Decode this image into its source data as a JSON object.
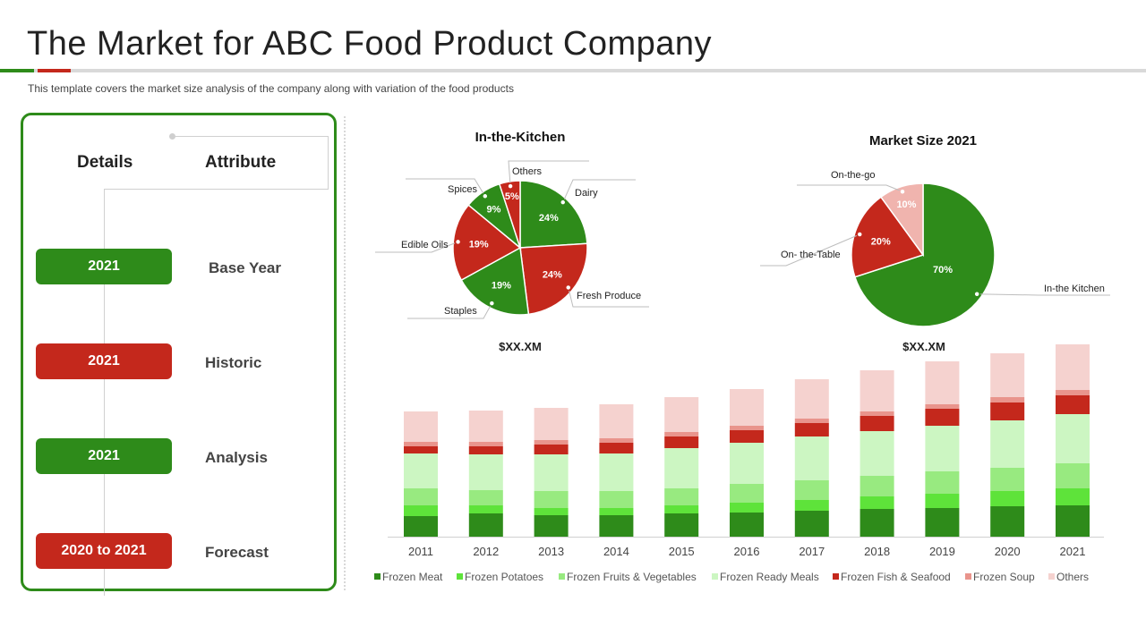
{
  "header": {
    "title": "The Market for ABC Food Product Company",
    "subtitle": "This template covers  the market size analysis of the company along with variation  of the food  products"
  },
  "details": {
    "col_details": "Details",
    "col_attribute": "Attribute",
    "rows": [
      {
        "label": "2021",
        "attribute": "Base Year",
        "color": "#2e8b1a"
      },
      {
        "label": "2021",
        "attribute": "Historic",
        "color": "#c4281c"
      },
      {
        "label": "2021",
        "attribute": "Analysis",
        "color": "#2e8b1a"
      },
      {
        "label": "2020 to 2021",
        "attribute": "Forecast",
        "color": "#c4281c"
      }
    ]
  },
  "chart_data": [
    {
      "type": "pie",
      "title": "In-the-Kitchen",
      "slices": [
        {
          "label": "Dairy",
          "value": 24,
          "display": "24%",
          "color": "#2e8b1a"
        },
        {
          "label": "Fresh Produce",
          "value": 24,
          "display": "24%",
          "color": "#c4281c"
        },
        {
          "label": "Staples",
          "value": 19,
          "display": "19%",
          "color": "#2e8b1a"
        },
        {
          "label": "Edible  Oils",
          "value": 19,
          "display": "19%",
          "color": "#c4281c"
        },
        {
          "label": "Spices",
          "value": 9,
          "display": "9%",
          "color": "#2e8b1a"
        },
        {
          "label": "Others",
          "value": 5,
          "display": "5%",
          "color": "#c4281c"
        }
      ]
    },
    {
      "type": "pie",
      "title": "Market Size 2021",
      "slices": [
        {
          "label": "In-the Kitchen",
          "value": 70,
          "display": "70%",
          "color": "#2e8b1a"
        },
        {
          "label": "On- the-Table",
          "value": 20,
          "display": "20%",
          "color": "#c4281c"
        },
        {
          "label": "On-the-go",
          "value": 10,
          "display": "10%",
          "color": "#f0b4ae"
        }
      ]
    },
    {
      "type": "bar",
      "stacked": true,
      "annotations": [
        "$XX.XM",
        "$XX.XM"
      ],
      "categories": [
        "2011",
        "2012",
        "2013",
        "2014",
        "2015",
        "2016",
        "2017",
        "2018",
        "2019",
        "2020",
        "2021"
      ],
      "ylim": [
        0,
        220
      ],
      "series": [
        {
          "name": "Frozen Meat",
          "color": "#2e8b1a",
          "values": [
            23,
            26,
            24,
            24,
            26,
            27,
            29,
            31,
            32,
            34,
            35
          ]
        },
        {
          "name": "Frozen Potatoes",
          "color": "#5ee33a",
          "values": [
            12,
            9,
            8,
            8,
            9,
            11,
            12,
            14,
            16,
            17,
            19
          ]
        },
        {
          "name": "Frozen Fruits & Vegetables",
          "color": "#98ea80",
          "values": [
            19,
            17,
            19,
            19,
            19,
            21,
            22,
            23,
            25,
            26,
            28
          ]
        },
        {
          "name": "Frozen Ready Meals",
          "color": "#ccf6c2",
          "values": [
            39,
            40,
            41,
            42,
            45,
            46,
            49,
            50,
            51,
            53,
            55
          ]
        },
        {
          "name": "Frozen Fish & Seafood",
          "color": "#c4281c",
          "values": [
            8,
            9,
            11,
            12,
            13,
            14,
            15,
            17,
            19,
            20,
            21
          ]
        },
        {
          "name": "Frozen Soup",
          "color": "#e9948c",
          "values": [
            5,
            5,
            5,
            5,
            5,
            5,
            5,
            5,
            5,
            6,
            6
          ]
        },
        {
          "name": "Others",
          "color": "#f5d2cf",
          "values": [
            34,
            35,
            36,
            38,
            39,
            41,
            44,
            46,
            48,
            49,
            51
          ]
        }
      ]
    }
  ]
}
